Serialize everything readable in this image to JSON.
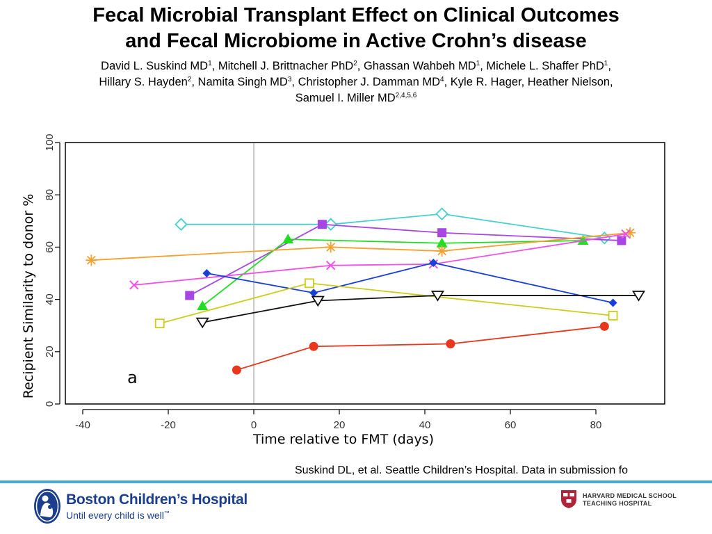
{
  "header": {
    "title_line1": "Fecal Microbial Transplant Effect on Clinical Outcomes",
    "title_line2": "and Fecal Microbiome in Active Crohn’s disease",
    "authors": [
      [
        {
          "name": "David L. Suskind MD",
          "sup": "1",
          "sep": ", "
        },
        {
          "name": "Mitchell J. Brittnacher PhD",
          "sup": "2",
          "sep": ", "
        },
        {
          "name": "Ghassan Wahbeh MD",
          "sup": "1",
          "sep": ", "
        },
        {
          "name": "Michele L. Shaffer PhD",
          "sup": "1",
          "sep": ","
        }
      ],
      [
        {
          "name": "Hillary S. Hayden",
          "sup": "2",
          "sep": ", "
        },
        {
          "name": "Namita Singh MD",
          "sup": "3",
          "sep": ", "
        },
        {
          "name": "Christopher J. Damman MD",
          "sup": "4",
          "sep": ", "
        },
        {
          "name": "Kyle R. Hager, Heather Nielson,",
          "sup": "",
          "sep": ""
        }
      ],
      [
        {
          "name": "Samuel I. Miller MD",
          "sup": "2,4,5,6",
          "sep": ""
        }
      ]
    ]
  },
  "chart_data": {
    "type": "line",
    "xlabel": "Time relative to FMT (days)",
    "ylabel": "Recipient Similarity to donor %",
    "xlim": [
      -45,
      95
    ],
    "ylim": [
      0,
      100
    ],
    "xticks": [
      -40,
      -20,
      0,
      20,
      40,
      60,
      80
    ],
    "yticks": [
      0,
      20,
      40,
      60,
      80,
      100
    ],
    "reference_line_x": 0,
    "panel_label": "a",
    "grid": false,
    "legend": "none",
    "series": [
      {
        "color": "#45cfcf",
        "marker": "diamond-open",
        "x": [
          -17,
          18,
          44,
          82
        ],
        "y": [
          68.7,
          68.7,
          72.7,
          63.5
        ]
      },
      {
        "color": "#a846e3",
        "marker": "square-filled",
        "x": [
          -15,
          16,
          44,
          86
        ],
        "y": [
          41.5,
          68.7,
          65.5,
          62.5
        ]
      },
      {
        "color": "#22dd22",
        "marker": "triangle-up-filled",
        "x": [
          -12,
          8,
          44,
          77
        ],
        "y": [
          37.5,
          63,
          61.5,
          62.5
        ]
      },
      {
        "color": "#f5a030",
        "marker": "asterisk",
        "x": [
          -38,
          18,
          44,
          88
        ],
        "y": [
          55,
          60,
          58.5,
          65.5
        ]
      },
      {
        "color": "#f050e6",
        "marker": "x",
        "x": [
          -28,
          18,
          42,
          87
        ],
        "y": [
          45.5,
          53,
          53.5,
          65
        ]
      },
      {
        "color": "#1a3fd9",
        "marker": "diamond-filled",
        "x": [
          -11,
          14,
          42,
          84
        ],
        "y": [
          50,
          42.5,
          54,
          38.7
        ]
      },
      {
        "color": "#cccc1a",
        "marker": "square-open",
        "x": [
          -22,
          13,
          84
        ],
        "y": [
          30.8,
          46.2,
          33.8
        ]
      },
      {
        "color": "#111111",
        "marker": "triangle-down-open",
        "x": [
          -12,
          15,
          43,
          90
        ],
        "y": [
          31.2,
          39.5,
          41.5,
          41.5
        ]
      },
      {
        "color": "#e8371d",
        "marker": "circle-filled",
        "x": [
          -4,
          14,
          46,
          82
        ],
        "y": [
          13,
          22,
          23,
          29.7
        ]
      }
    ]
  },
  "footer": {
    "citation": "Suskind DL, et al. Seattle Children’s Hospital.  Data in submission fo",
    "bch_name": "Boston Children’s Hospital",
    "bch_tagline": "Until every child is well",
    "bch_tagline_tm": "™",
    "hms_line1": "HARVARD MEDICAL SCHOOL",
    "hms_line2": "TEACHING HOSPITAL",
    "bch_color": "#1b3f8c",
    "rule_color": "#4aa9dc",
    "hms_color": "#b0243a"
  }
}
